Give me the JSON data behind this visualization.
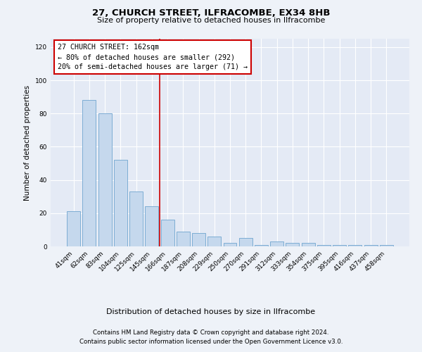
{
  "title1": "27, CHURCH STREET, ILFRACOMBE, EX34 8HB",
  "title2": "Size of property relative to detached houses in Ilfracombe",
  "xlabel": "Distribution of detached houses by size in Ilfracombe",
  "ylabel": "Number of detached properties",
  "categories": [
    "41sqm",
    "62sqm",
    "83sqm",
    "104sqm",
    "125sqm",
    "145sqm",
    "166sqm",
    "187sqm",
    "208sqm",
    "229sqm",
    "250sqm",
    "270sqm",
    "291sqm",
    "312sqm",
    "333sqm",
    "354sqm",
    "375sqm",
    "395sqm",
    "416sqm",
    "437sqm",
    "458sqm"
  ],
  "values": [
    21,
    88,
    80,
    52,
    33,
    24,
    16,
    9,
    8,
    6,
    2,
    5,
    1,
    3,
    2,
    2,
    1,
    1,
    1,
    1,
    1
  ],
  "bar_color": "#c5d8ed",
  "bar_edgecolor": "#7dadd4",
  "vline_index": 6,
  "vline_color": "#cc0000",
  "annotation_title": "27 CHURCH STREET: 162sqm",
  "annotation_line1": "← 80% of detached houses are smaller (292)",
  "annotation_line2": "20% of semi-detached houses are larger (71) →",
  "annotation_box_color": "#cc0000",
  "ylim": [
    0,
    125
  ],
  "yticks": [
    0,
    20,
    40,
    60,
    80,
    100,
    120
  ],
  "footer1": "Contains HM Land Registry data © Crown copyright and database right 2024.",
  "footer2": "Contains public sector information licensed under the Open Government Licence v3.0.",
  "bg_color": "#eef2f8",
  "plot_bg_color": "#e4eaf5"
}
